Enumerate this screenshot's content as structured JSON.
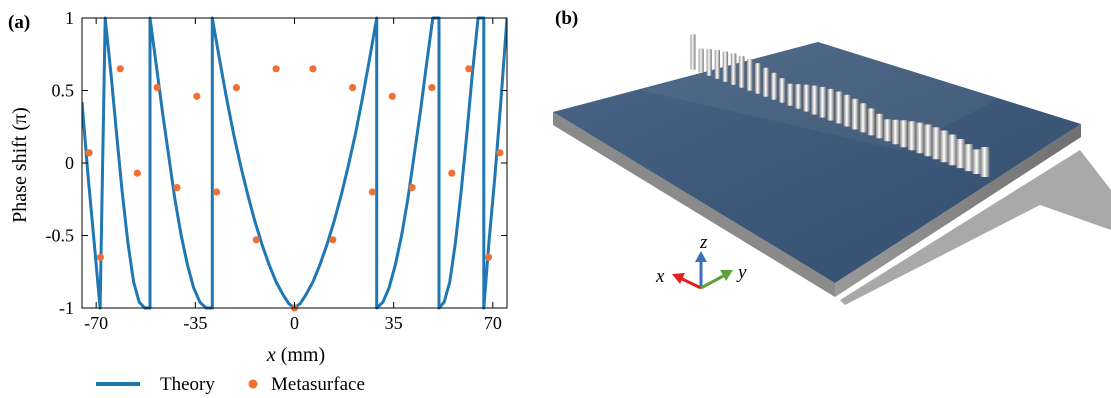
{
  "panel_a_label": "(a)",
  "panel_b_label": "(b)",
  "chart_data": {
    "type": "line",
    "title": "",
    "xlabel": {
      "var": "x",
      "unit": " (mm)"
    },
    "ylabel": {
      "main": "Phase shift (",
      "sym": "π",
      "end": ")"
    },
    "xlim": [
      -75,
      75
    ],
    "ylim": [
      -1,
      1
    ],
    "x_ticks": [
      {
        "value": -70,
        "label": "-70"
      },
      {
        "value": -35,
        "label": "-35"
      },
      {
        "value": 0,
        "label": "0"
      },
      {
        "value": 35,
        "label": "35"
      },
      {
        "value": 70,
        "label": "70"
      }
    ],
    "y_ticks": [
      {
        "value": 1,
        "label": "1"
      },
      {
        "value": 0.5,
        "label": "0.5"
      },
      {
        "value": 0,
        "label": "0"
      },
      {
        "value": -0.5,
        "label": "-0.5"
      },
      {
        "value": -1,
        "label": "-1"
      }
    ],
    "grid": false,
    "legend_position": "bottom",
    "series": [
      {
        "name": "Theory",
        "kind": "line",
        "color": "#1f77b4",
        "x": [
          -75,
          -72.8,
          -70.7,
          -68.6,
          -66.8,
          -66.8,
          -64.8,
          -62.8,
          -60.8,
          -58.8,
          -56.8,
          -54.8,
          -52.8,
          -51.0,
          -51.0,
          -48.8,
          -46.6,
          -44.4,
          -42.2,
          -40.0,
          -37.8,
          -35.6,
          -33.4,
          -31.2,
          -29.0,
          -29.0,
          -26.5,
          -24.0,
          -21.5,
          -19.0,
          -16.5,
          -14.0,
          -11.5,
          -9.0,
          -6.5,
          -4.0,
          -2.0,
          0,
          2.0,
          4.0,
          6.5,
          9.0,
          11.5,
          14.0,
          16.5,
          19.0,
          21.5,
          24.0,
          26.5,
          29.0,
          29.0,
          31.2,
          33.4,
          35.6,
          37.8,
          40.0,
          42.2,
          44.4,
          46.6,
          48.8,
          51.0,
          51.0,
          52.8,
          54.8,
          56.8,
          58.8,
          60.8,
          62.8,
          64.8,
          66.8,
          66.8,
          68.6,
          70.7,
          72.8,
          75
        ],
        "y": [
          0.42,
          -0.1,
          -0.55,
          -1.0,
          1.0,
          1.0,
          0.62,
          0.2,
          -0.2,
          -0.55,
          -0.82,
          -0.96,
          -1.0,
          -1.0,
          1.0,
          0.68,
          0.35,
          0.05,
          -0.25,
          -0.5,
          -0.7,
          -0.86,
          -0.96,
          -1.0,
          -1.0,
          1.0,
          0.72,
          0.45,
          0.2,
          -0.02,
          -0.22,
          -0.4,
          -0.56,
          -0.7,
          -0.82,
          -0.91,
          -0.97,
          -1.0,
          -0.97,
          -0.91,
          -0.82,
          -0.7,
          -0.56,
          -0.4,
          -0.22,
          -0.02,
          0.2,
          0.45,
          0.72,
          1.0,
          -1.0,
          -0.96,
          -0.86,
          -0.7,
          -0.5,
          -0.25,
          0.05,
          0.35,
          0.68,
          1.0,
          1.0,
          -1.0,
          -0.96,
          -0.82,
          -0.55,
          -0.2,
          0.2,
          0.62,
          1.0,
          1.0,
          -1.0,
          -0.55,
          -0.1,
          0.42,
          1.0
        ]
      },
      {
        "name": "Metasurface",
        "kind": "scatter",
        "color": "#f07033",
        "x": [
          -72.5,
          -68.5,
          -61.5,
          -55.5,
          -48.5,
          -41.5,
          -34.5,
          -27.5,
          -20.5,
          -13.5,
          -6.5,
          0,
          6.5,
          13.5,
          20.5,
          27.5,
          34.5,
          41.5,
          48.5,
          55.5,
          61.5,
          68.5,
          72.5
        ],
        "y": [
          0.07,
          -0.65,
          0.65,
          -0.07,
          0.52,
          -0.17,
          0.46,
          -0.2,
          0.52,
          -0.53,
          0.65,
          -1.0,
          0.65,
          -0.53,
          0.52,
          -0.2,
          0.46,
          -0.17,
          0.52,
          -0.07,
          0.65,
          -0.65,
          0.07
        ]
      }
    ]
  },
  "panel_b": {
    "axes": {
      "x": "x",
      "y": "y",
      "z": "z"
    },
    "colors": {
      "substrate_top": "#3d5878",
      "substrate_side": "#8e8e8e",
      "shadow": "#a9a9a9",
      "pillar": "#e4e4e4",
      "axis_x": "#e02020",
      "axis_y": "#5aa33a",
      "axis_z": "#3e6fb8"
    }
  }
}
